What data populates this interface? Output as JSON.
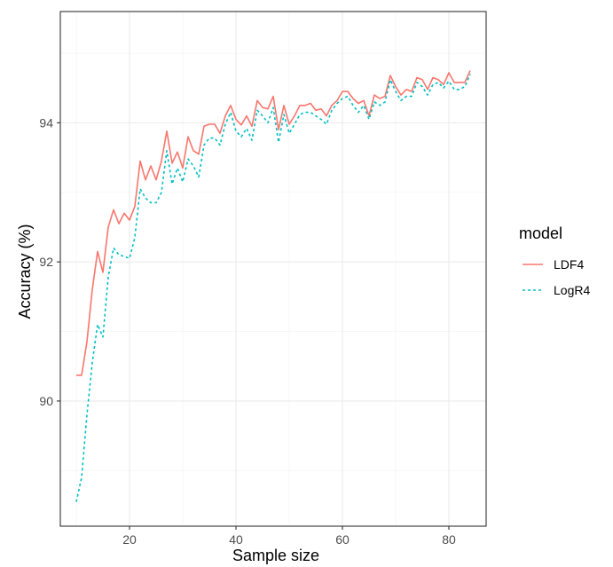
{
  "chart_data": {
    "type": "line",
    "xlabel": "Sample size",
    "ylabel": "Accuracy (%)",
    "xlim": [
      7,
      87
    ],
    "ylim": [
      88.2,
      95.6
    ],
    "x_ticks": [
      20,
      40,
      60,
      80
    ],
    "y_ticks": [
      90,
      92,
      94
    ],
    "grid": true,
    "legend": {
      "title": "model",
      "position": "right"
    },
    "x": [
      10,
      11,
      12,
      13,
      14,
      15,
      16,
      17,
      18,
      19,
      20,
      21,
      22,
      23,
      24,
      25,
      26,
      27,
      28,
      29,
      30,
      31,
      32,
      33,
      34,
      35,
      36,
      37,
      38,
      39,
      40,
      41,
      42,
      43,
      44,
      45,
      46,
      47,
      48,
      49,
      50,
      51,
      52,
      53,
      54,
      55,
      56,
      57,
      58,
      59,
      60,
      61,
      62,
      63,
      64,
      65,
      66,
      67,
      68,
      69,
      70,
      71,
      72,
      73,
      74,
      75,
      76,
      77,
      78,
      79,
      80,
      81,
      82,
      83,
      84
    ],
    "series": [
      {
        "name": "LDF4",
        "color": "#F8766D",
        "line_style": "solid",
        "values": [
          90.37,
          90.37,
          90.85,
          91.6,
          92.15,
          91.85,
          92.5,
          92.75,
          92.55,
          92.7,
          92.6,
          92.8,
          93.45,
          93.18,
          93.38,
          93.18,
          93.45,
          93.88,
          93.42,
          93.58,
          93.35,
          93.8,
          93.6,
          93.55,
          93.95,
          93.98,
          93.98,
          93.85,
          94.1,
          94.25,
          94.05,
          93.97,
          94.1,
          93.95,
          94.32,
          94.22,
          94.2,
          94.38,
          93.9,
          94.25,
          93.98,
          94.1,
          94.25,
          94.25,
          94.28,
          94.18,
          94.2,
          94.1,
          94.25,
          94.32,
          94.45,
          94.45,
          94.35,
          94.28,
          94.32,
          94.1,
          94.4,
          94.35,
          94.38,
          94.68,
          94.52,
          94.4,
          94.48,
          94.45,
          94.65,
          94.62,
          94.48,
          94.65,
          94.62,
          94.55,
          94.72,
          94.58,
          94.58,
          94.58,
          94.75
        ]
      },
      {
        "name": "LogR4",
        "color": "#00BFC4",
        "line_style": "dashed",
        "values": [
          88.55,
          88.9,
          89.8,
          90.55,
          91.1,
          90.92,
          91.78,
          92.2,
          92.1,
          92.08,
          92.05,
          92.35,
          93.05,
          92.92,
          92.85,
          92.85,
          93.0,
          93.6,
          93.12,
          93.35,
          93.15,
          93.48,
          93.38,
          93.22,
          93.68,
          93.78,
          93.78,
          93.68,
          93.98,
          94.15,
          93.88,
          93.8,
          93.92,
          93.75,
          94.18,
          94.1,
          94.0,
          94.22,
          93.72,
          94.12,
          93.85,
          93.98,
          94.12,
          94.15,
          94.15,
          94.1,
          94.05,
          93.98,
          94.18,
          94.28,
          94.35,
          94.38,
          94.25,
          94.15,
          94.25,
          94.05,
          94.3,
          94.25,
          94.3,
          94.62,
          94.45,
          94.32,
          94.38,
          94.38,
          94.58,
          94.52,
          94.4,
          94.55,
          94.58,
          94.5,
          94.6,
          94.48,
          94.48,
          94.52,
          94.7
        ]
      }
    ]
  }
}
